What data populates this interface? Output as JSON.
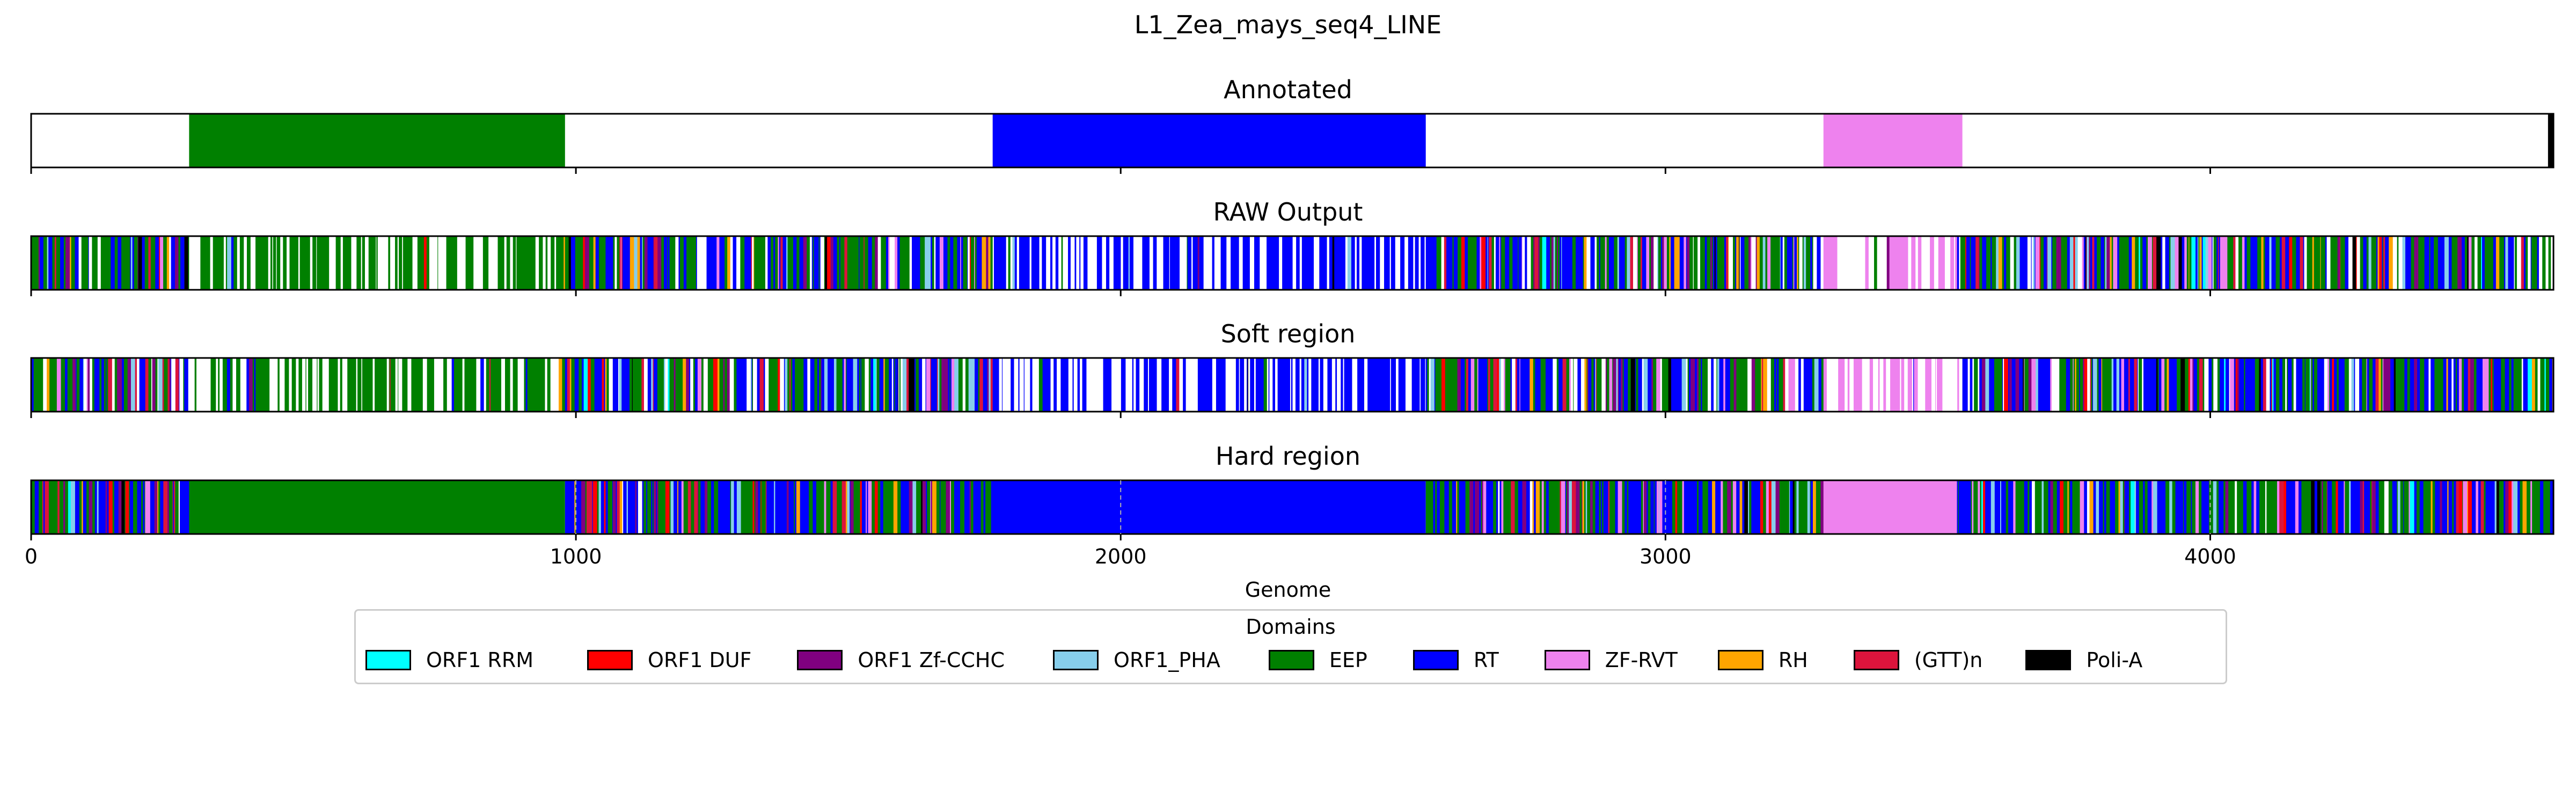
{
  "chart_data": {
    "type": "track",
    "title": "L1_Zea_mays_seq4_LINE",
    "xlabel": "Genome",
    "xlim": [
      0,
      4630
    ],
    "xticks": [
      0,
      1000,
      2000,
      3000,
      4000
    ],
    "tracks": [
      {
        "title": "Annotated",
        "segments": [
          {
            "domain": "EEP",
            "start": 290,
            "end": 980
          },
          {
            "domain": "RT",
            "start": 1765,
            "end": 2560
          },
          {
            "domain": "ZF-RVT",
            "start": 3290,
            "end": 3545
          },
          {
            "domain": "Poli-A",
            "start": 4620,
            "end": 4630
          }
        ]
      },
      {
        "title": "RAW Output",
        "regions": [
          {
            "start": 0,
            "end": 290,
            "mix": "mixed",
            "white": 0.12
          },
          {
            "start": 290,
            "end": 980,
            "mix": "EEP",
            "white": 0.4
          },
          {
            "start": 980,
            "end": 1765,
            "mix": "mixed",
            "white": 0.1
          },
          {
            "start": 1765,
            "end": 2560,
            "mix": "RT",
            "white": 0.35
          },
          {
            "start": 2560,
            "end": 3290,
            "mix": "mixed",
            "white": 0.1
          },
          {
            "start": 3290,
            "end": 3545,
            "mix": "ZF-RVT",
            "white": 0.55
          },
          {
            "start": 3545,
            "end": 4630,
            "mix": "mixed",
            "white": 0.1
          }
        ]
      },
      {
        "title": "Soft region",
        "regions": [
          {
            "start": 0,
            "end": 290,
            "mix": "mixed",
            "white": 0.12
          },
          {
            "start": 290,
            "end": 980,
            "mix": "EEP",
            "white": 0.4
          },
          {
            "start": 980,
            "end": 1765,
            "mix": "mixed",
            "white": 0.1
          },
          {
            "start": 1765,
            "end": 2560,
            "mix": "RT",
            "white": 0.35
          },
          {
            "start": 2560,
            "end": 3290,
            "mix": "mixed",
            "white": 0.1
          },
          {
            "start": 3290,
            "end": 3545,
            "mix": "ZF-RVT",
            "white": 0.55
          },
          {
            "start": 3545,
            "end": 4630,
            "mix": "mixed",
            "white": 0.1
          }
        ]
      },
      {
        "title": "Hard region",
        "regions": [
          {
            "start": 0,
            "end": 290,
            "mix": "mixed",
            "white": 0.02
          },
          {
            "start": 290,
            "end": 980,
            "mix": "solid:EEP",
            "white": 0
          },
          {
            "start": 980,
            "end": 1765,
            "mix": "mixed",
            "white": 0.02
          },
          {
            "start": 1765,
            "end": 2560,
            "mix": "solid:RT",
            "white": 0
          },
          {
            "start": 2560,
            "end": 3290,
            "mix": "mixed",
            "white": 0.02
          },
          {
            "start": 3290,
            "end": 3535,
            "mix": "solid:ZF-RVT",
            "white": 0
          },
          {
            "start": 3535,
            "end": 4630,
            "mix": "mixed",
            "white": 0.02
          }
        ]
      }
    ],
    "legend_title": "Domains",
    "legend_placement": "bottom-center",
    "domains": [
      {
        "name": "ORF1 RRM",
        "color": "#00ffff"
      },
      {
        "name": "ORF1 DUF",
        "color": "#ff0000"
      },
      {
        "name": "ORF1 Zf-CCHC",
        "color": "#800080"
      },
      {
        "name": "ORF1_PHA",
        "color": "#87ceeb"
      },
      {
        "name": "EEP",
        "color": "#008000"
      },
      {
        "name": "RT",
        "color": "#0000ff"
      },
      {
        "name": "ZF-RVT",
        "color": "#ee82ee"
      },
      {
        "name": "RH",
        "color": "#ffa500"
      },
      {
        "name": "(GTT)n",
        "color": "#dc143c"
      },
      {
        "name": "Poli-A",
        "color": "#000000"
      }
    ]
  }
}
